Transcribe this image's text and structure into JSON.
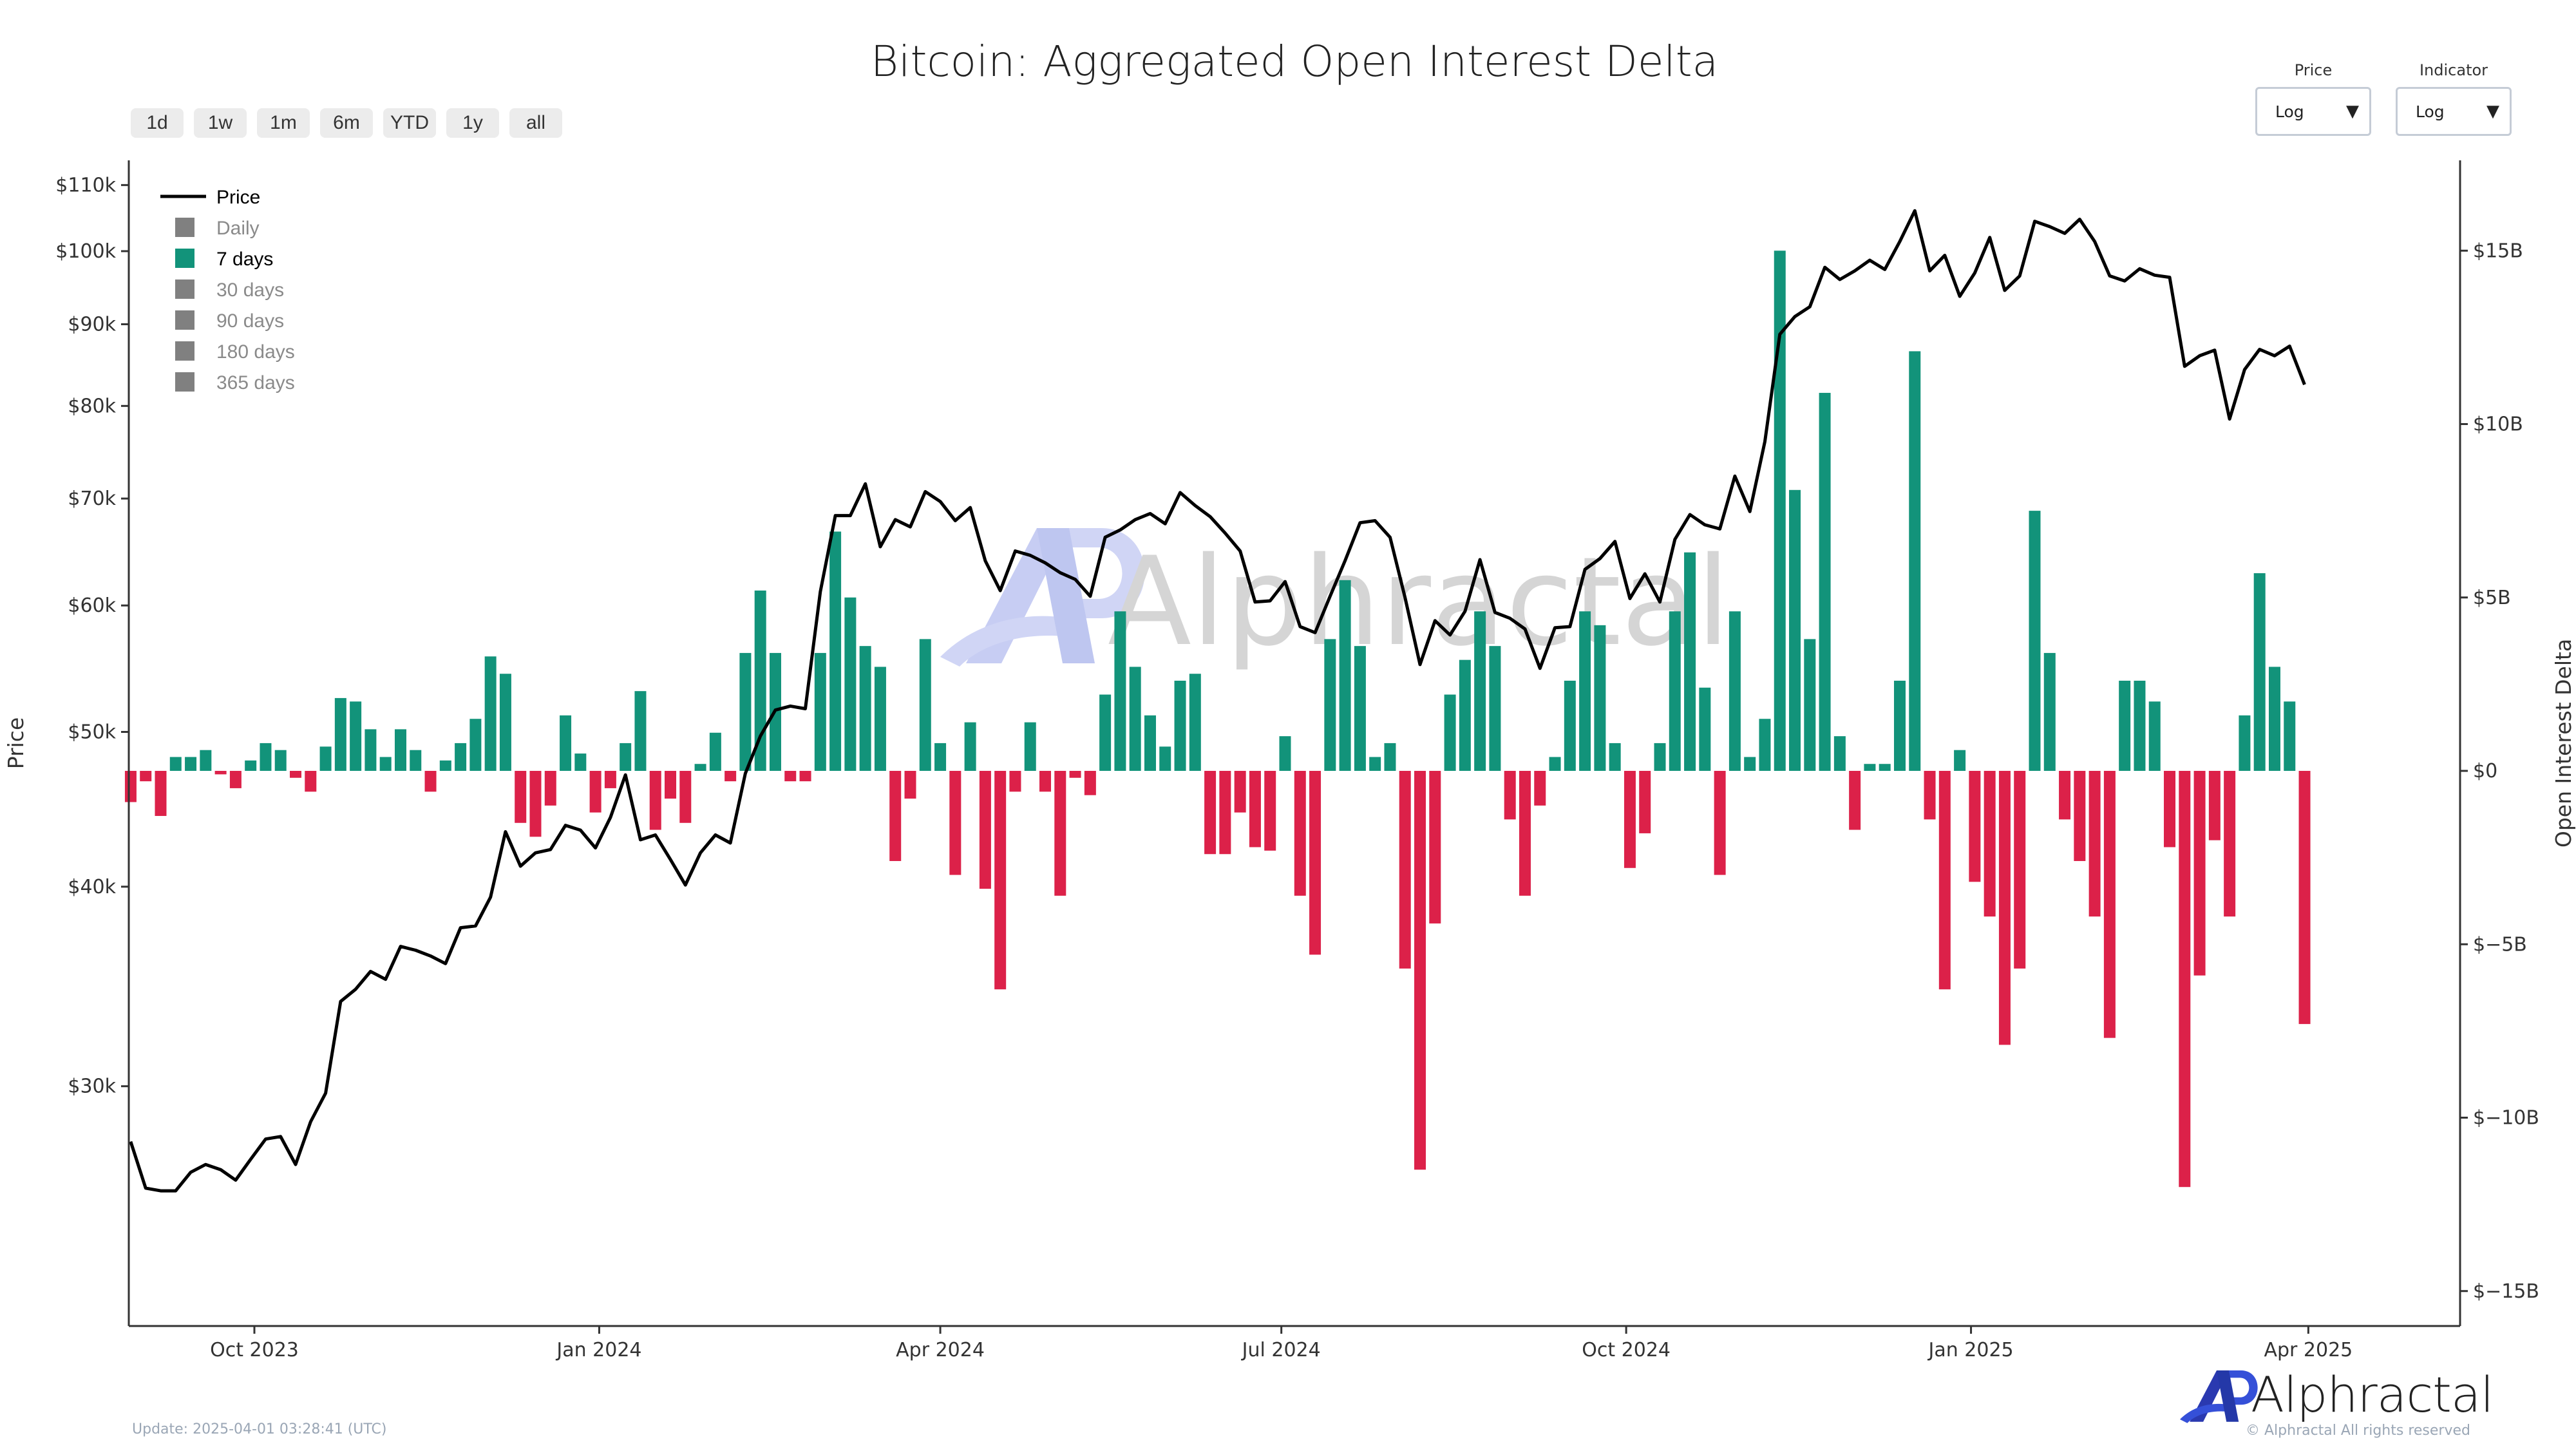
{
  "title": "Bitcoin: Aggregated Open Interest Delta",
  "range_buttons": [
    "1d",
    "1w",
    "1m",
    "6m",
    "YTD",
    "1y",
    "all"
  ],
  "dropdowns": [
    {
      "label": "Price",
      "value": "Log"
    },
    {
      "label": "Indicator",
      "value": "Log"
    }
  ],
  "watermark": "Alphractal",
  "brand": "Alphractal",
  "copyright": "© Alphractal All rights reserved",
  "update_text": "Update: 2025-04-01 03:28:41 (UTC)",
  "colors": {
    "price": "#000000",
    "positive": "#12937a",
    "negative": "#dc2149",
    "legend_inactive": "#808080",
    "brand_blue": "#3346c8"
  },
  "legend": {
    "items": [
      {
        "label": "Price",
        "type": "line",
        "active": true
      },
      {
        "label": "Daily",
        "type": "bar",
        "active": false
      },
      {
        "label": "7 days",
        "type": "bar",
        "active": true
      },
      {
        "label": "30 days",
        "type": "bar",
        "active": false
      },
      {
        "label": "90 days",
        "type": "bar",
        "active": false
      },
      {
        "label": "180 days",
        "type": "bar",
        "active": false
      },
      {
        "label": "365 days",
        "type": "bar",
        "active": false
      }
    ]
  },
  "chart_data": {
    "type": "bar+line",
    "title": "Bitcoin: Aggregated Open Interest Delta",
    "ylabel_left": "Price",
    "ylabel_right": "Open Interest Delta",
    "left_axis_scale": "log",
    "left_ticks": [
      {
        "label": "$110k",
        "value": 110000
      },
      {
        "label": "$100k",
        "value": 100000
      },
      {
        "label": "$90k",
        "value": 90000
      },
      {
        "label": "$80k",
        "value": 80000
      },
      {
        "label": "$70k",
        "value": 70000
      },
      {
        "label": "$60k",
        "value": 60000
      },
      {
        "label": "$50k",
        "value": 50000
      },
      {
        "label": "$40k",
        "value": 40000
      },
      {
        "label": "$30k",
        "value": 30000
      }
    ],
    "right_ticks": [
      {
        "label": "$15B",
        "value": 15
      },
      {
        "label": "$10B",
        "value": 10
      },
      {
        "label": "$5B",
        "value": 5
      },
      {
        "label": "$0",
        "value": 0
      },
      {
        "label": "$−5B",
        "value": -5
      },
      {
        "label": "$−10B",
        "value": -10
      },
      {
        "label": "$−15B",
        "value": -15
      }
    ],
    "x_ticks": [
      {
        "label": "Oct 2023",
        "date": "2023-10-01"
      },
      {
        "label": "Jan 2024",
        "date": "2024-01-01"
      },
      {
        "label": "Apr 2024",
        "date": "2024-04-01"
      },
      {
        "label": "Jul 2024",
        "date": "2024-07-01"
      },
      {
        "label": "Oct 2024",
        "date": "2024-10-01"
      },
      {
        "label": "Jan 2025",
        "date": "2025-01-01"
      },
      {
        "label": "Apr 2025",
        "date": "2025-04-01"
      }
    ],
    "grid": false,
    "legend_position": "top-left",
    "series": [
      {
        "name": "Price",
        "type": "line",
        "axis": "left"
      },
      {
        "name": "7 days",
        "type": "bar",
        "axis": "right",
        "unit": "USD billions"
      }
    ],
    "dates": [
      "2023-08-29",
      "2023-09-02",
      "2023-09-06",
      "2023-09-10",
      "2023-09-14",
      "2023-09-18",
      "2023-09-22",
      "2023-09-26",
      "2023-09-30",
      "2023-10-04",
      "2023-10-08",
      "2023-10-12",
      "2023-10-16",
      "2023-10-20",
      "2023-10-24",
      "2023-10-28",
      "2023-11-01",
      "2023-11-05",
      "2023-11-09",
      "2023-11-13",
      "2023-11-17",
      "2023-11-21",
      "2023-11-25",
      "2023-11-29",
      "2023-12-03",
      "2023-12-07",
      "2023-12-11",
      "2023-12-15",
      "2023-12-19",
      "2023-12-23",
      "2023-12-27",
      "2023-12-31",
      "2024-01-04",
      "2024-01-08",
      "2024-01-12",
      "2024-01-16",
      "2024-01-20",
      "2024-01-24",
      "2024-01-28",
      "2024-02-01",
      "2024-02-05",
      "2024-02-09",
      "2024-02-13",
      "2024-02-17",
      "2024-02-21",
      "2024-02-25",
      "2024-02-29",
      "2024-03-04",
      "2024-03-08",
      "2024-03-12",
      "2024-03-16",
      "2024-03-20",
      "2024-03-24",
      "2024-03-28",
      "2024-04-01",
      "2024-04-05",
      "2024-04-09",
      "2024-04-13",
      "2024-04-17",
      "2024-04-21",
      "2024-04-25",
      "2024-04-29",
      "2024-05-03",
      "2024-05-07",
      "2024-05-11",
      "2024-05-15",
      "2024-05-19",
      "2024-05-23",
      "2024-05-27",
      "2024-05-31",
      "2024-06-04",
      "2024-06-08",
      "2024-06-12",
      "2024-06-16",
      "2024-06-20",
      "2024-06-24",
      "2024-06-28",
      "2024-07-02",
      "2024-07-06",
      "2024-07-10",
      "2024-07-14",
      "2024-07-18",
      "2024-07-22",
      "2024-07-26",
      "2024-07-30",
      "2024-08-03",
      "2024-08-07",
      "2024-08-11",
      "2024-08-15",
      "2024-08-19",
      "2024-08-23",
      "2024-08-27",
      "2024-08-31",
      "2024-09-04",
      "2024-09-08",
      "2024-09-12",
      "2024-09-16",
      "2024-09-20",
      "2024-09-24",
      "2024-09-28",
      "2024-10-02",
      "2024-10-06",
      "2024-10-10",
      "2024-10-14",
      "2024-10-18",
      "2024-10-22",
      "2024-10-26",
      "2024-10-30",
      "2024-11-03",
      "2024-11-07",
      "2024-11-11",
      "2024-11-15",
      "2024-11-19",
      "2024-11-23",
      "2024-11-27",
      "2024-12-01",
      "2024-12-05",
      "2024-12-09",
      "2024-12-13",
      "2024-12-17",
      "2024-12-21",
      "2024-12-25",
      "2024-12-29",
      "2025-01-02",
      "2025-01-06",
      "2025-01-10",
      "2025-01-14",
      "2025-01-18",
      "2025-01-22",
      "2025-01-26",
      "2025-01-30",
      "2025-02-03",
      "2025-02-07",
      "2025-02-11",
      "2025-02-15",
      "2025-02-19",
      "2025-02-23",
      "2025-02-27",
      "2025-03-03",
      "2025-03-07",
      "2025-03-11",
      "2025-03-15",
      "2025-03-19",
      "2025-03-23",
      "2025-03-27",
      "2025-03-31"
    ],
    "price": [
      27700,
      25900,
      25800,
      25800,
      26500,
      26800,
      26600,
      26200,
      27000,
      27800,
      27900,
      26800,
      28500,
      29700,
      33900,
      34500,
      35400,
      35000,
      36700,
      36500,
      36200,
      35800,
      37700,
      37800,
      39400,
      43300,
      41200,
      42000,
      42200,
      43700,
      43400,
      42300,
      44200,
      47000,
      42800,
      43100,
      41600,
      40100,
      42000,
      43100,
      42600,
      47100,
      49700,
      51600,
      51900,
      51700,
      61200,
      68300,
      68300,
      71500,
      65300,
      67900,
      67200,
      70700,
      69700,
      67800,
      69100,
      64000,
      61300,
      64900,
      64500,
      63800,
      62900,
      62300,
      60800,
      66200,
      66900,
      67900,
      68500,
      67500,
      70600,
      69300,
      68200,
      66600,
      64900,
      60300,
      60400,
      62100,
      58200,
      57700,
      60800,
      64000,
      67600,
      67800,
      66200,
      60700,
      55100,
      58700,
      57500,
      59500,
      64100,
      59400,
      58900,
      58000,
      54800,
      58100,
      58200,
      63200,
      64200,
      65800,
      60600,
      62800,
      60300,
      66000,
      68400,
      67400,
      67000,
      72300,
      68700,
      76000,
      88700,
      91000,
      92300,
      97700,
      96000,
      97200,
      98700,
      97400,
      101400,
      106000,
      97200,
      99400,
      93700,
      96900,
      102000,
      94500,
      96500,
      104400,
      103600,
      102600,
      104700,
      101400,
      96500,
      95800,
      97500,
      96600,
      96300,
      84700,
      86000,
      86700,
      78500,
      84300,
      86800,
      86000,
      87200,
      82500
    ],
    "oi_delta": [
      -0.9,
      -0.3,
      -1.3,
      0.4,
      0.4,
      0.6,
      -0.1,
      -0.5,
      0.3,
      0.8,
      0.6,
      -0.2,
      -0.6,
      0.7,
      2.1,
      2.0,
      1.2,
      0.4,
      1.2,
      0.6,
      -0.6,
      0.3,
      0.8,
      1.5,
      3.3,
      2.8,
      -1.5,
      -1.9,
      -1.0,
      1.6,
      0.5,
      -1.2,
      -0.5,
      0.8,
      2.3,
      -1.7,
      -0.8,
      -1.5,
      0.2,
      1.1,
      -0.3,
      3.4,
      5.2,
      3.4,
      -0.3,
      -0.3,
      3.4,
      6.9,
      5.0,
      3.6,
      3.0,
      -2.6,
      -0.8,
      3.8,
      0.8,
      -3.0,
      1.4,
      -3.4,
      -6.3,
      -0.6,
      1.4,
      -0.6,
      -3.6,
      -0.2,
      -0.7,
      2.2,
      4.6,
      3.0,
      1.6,
      0.7,
      2.6,
      2.8,
      -2.4,
      -2.4,
      -1.2,
      -2.2,
      -2.3,
      1.0,
      -3.6,
      -5.3,
      3.8,
      5.5,
      3.6,
      0.4,
      0.8,
      -5.7,
      -11.5,
      -4.4,
      2.2,
      3.2,
      4.6,
      3.6,
      -1.4,
      -3.6,
      -1.0,
      0.4,
      2.6,
      4.6,
      4.2,
      0.8,
      -2.8,
      -1.8,
      0.8,
      4.6,
      6.3,
      2.4,
      -3.0,
      4.6,
      0.4,
      1.5,
      15.0,
      8.1,
      3.8,
      10.9,
      1.0,
      -1.7,
      0.2,
      0.2,
      2.6,
      12.1,
      -1.4,
      -6.3,
      0.6,
      -3.2,
      -4.2,
      -7.9,
      -5.7,
      7.5,
      3.4,
      -1.4,
      -2.6,
      -4.2,
      -7.7,
      2.6,
      2.6,
      2.0,
      -2.2,
      -12.0,
      -5.9,
      -2.0,
      -4.2,
      1.6,
      5.7,
      3.0,
      2.0,
      -7.3
    ]
  }
}
